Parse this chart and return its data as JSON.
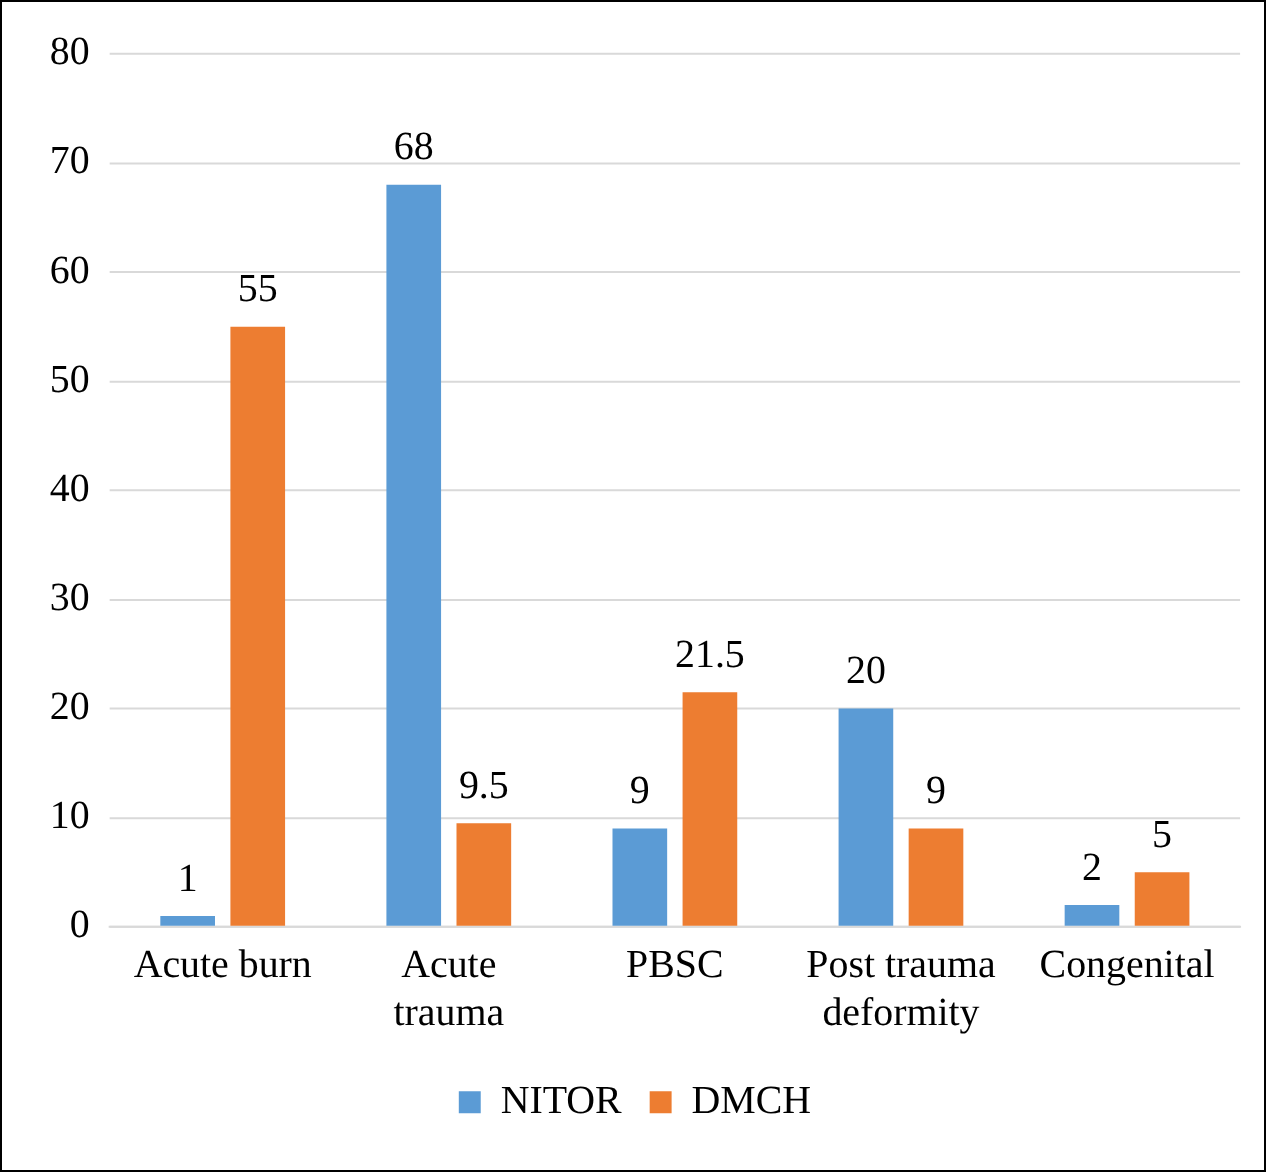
{
  "chart_data": {
    "type": "bar",
    "categories": [
      "Acute burn",
      "Acute trauma",
      "PBSC",
      "Post trauma deformity",
      "Congenital"
    ],
    "series": [
      {
        "name": "NITOR",
        "color": "#5b9bd5",
        "values": [
          1,
          68,
          9,
          20,
          2
        ]
      },
      {
        "name": "DMCH",
        "color": "#ed7d31",
        "values": [
          55,
          9.5,
          21.5,
          9,
          5
        ]
      }
    ],
    "ylim": [
      0,
      80
    ],
    "yticks": [
      0,
      10,
      20,
      30,
      40,
      50,
      60,
      70,
      80
    ],
    "grid": "y",
    "legend": "bottom",
    "data_labels": true
  }
}
